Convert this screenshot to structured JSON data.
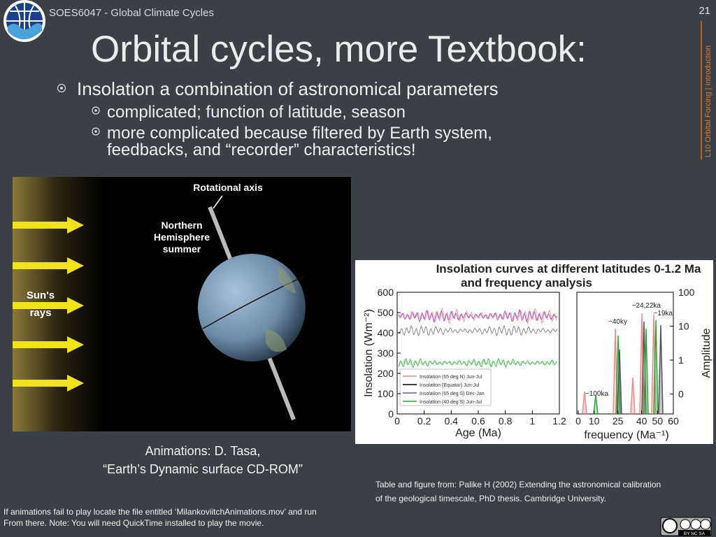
{
  "header": {
    "course": "SOES6047 - Global Climate Cycles",
    "page_number": "21",
    "side_label": "L10 Orbital Forcing | Introduction",
    "title": "Orbital cycles, more Textbook:"
  },
  "bullets": [
    {
      "text": "Insolation a combination of astronomical parameters",
      "sub": [
        [
          "complicated; function of latitude, season"
        ],
        [
          "more complicated because filtered by Earth system,",
          "feedbacks, and “recorder” characteristics!"
        ]
      ]
    }
  ],
  "animation_figure": {
    "axis_label": "Rotational axis",
    "season_label": [
      "Northern",
      "Hemisphere",
      "summer"
    ],
    "rays_label": [
      "Sun's",
      "rays"
    ],
    "caption": [
      "Animations: D. Tasa,",
      "“Earth’s Dynamic surface CD-ROM”"
    ]
  },
  "insolation_figure": {
    "title": [
      "Insolation curves at different latitudes 0-1.2 Ma",
      "and frequency analysis"
    ],
    "left_y_label": "Insolation (Wm⁻²)",
    "left_y_ticks": [
      0,
      100,
      200,
      300,
      400,
      500,
      600
    ],
    "left_x_label": "Age (Ma)",
    "left_x_ticks": [
      0,
      0.2,
      0.4,
      0.6,
      0.8,
      1.0,
      1.2
    ],
    "legend": [
      "Insolation (65 deg N) Jun-Jul",
      "Insolation (Equator) Jun-Jul",
      "Insolation (65 deg S) Dec-Jan",
      "Insolation (40 deg S) Jun-Jul"
    ],
    "right_x_label": "frequency (Ma⁻¹)",
    "right_x_ticks": [
      0,
      10,
      25,
      40,
      50,
      60
    ],
    "right_y_label": "Amplitude",
    "right_y_ticks": [
      100,
      10,
      1,
      0
    ],
    "annotations": [
      "~24,22ka",
      "~19ka",
      "~40ky",
      "~100ka"
    ]
  },
  "footer": {
    "source": [
      "Table and figure from: Palike H (2002) Extending the astronomical calibration",
      "of the geological timescale, PhD thesis. Cambridge University."
    ],
    "note": [
      "If animations fail to play locate the file entitled ‘MilankoviitchAnimations.mov’ and run",
      "From there. Note: You will need QuickTime installed to play the movie."
    ],
    "license": "BY NC SA"
  }
}
